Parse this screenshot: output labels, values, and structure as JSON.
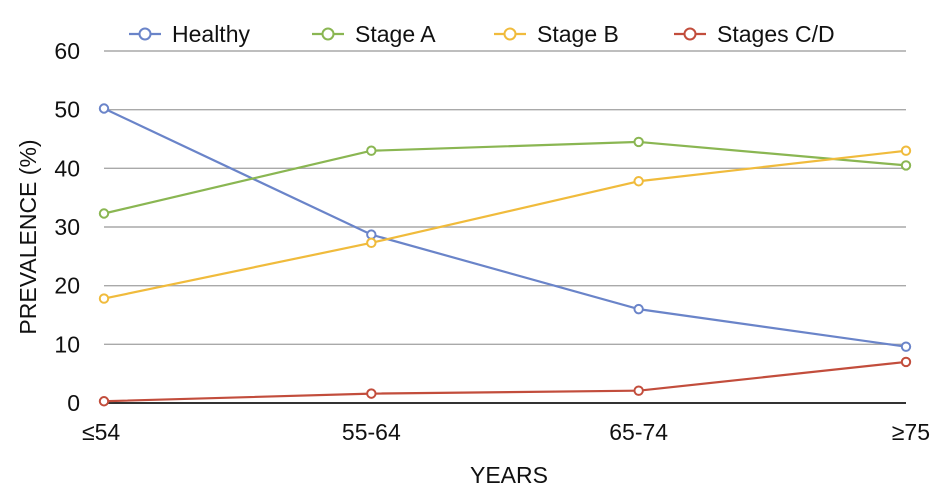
{
  "chart_data": {
    "type": "line",
    "categories": [
      "≤54",
      "55-64",
      "65-74",
      "≥75"
    ],
    "series": [
      {
        "name": "Healthy",
        "color": "#6a84c9",
        "values": [
          50.2,
          28.7,
          16.0,
          9.6
        ]
      },
      {
        "name": "Stage A",
        "color": "#8ab652",
        "values": [
          32.3,
          43.0,
          44.5,
          40.5
        ]
      },
      {
        "name": "Stage B",
        "color": "#f0bb3c",
        "values": [
          17.8,
          27.3,
          37.8,
          43.0
        ]
      },
      {
        "name": "Stages C/D",
        "color": "#c24d3c",
        "values": [
          0.3,
          1.6,
          2.1,
          7.0
        ]
      }
    ],
    "title": "",
    "xlabel": "YEARS",
    "ylabel": "PREVALENCE (%)",
    "ylim": [
      0,
      60
    ],
    "yticks": [
      0,
      10,
      20,
      30,
      40,
      50,
      60
    ],
    "grid": true,
    "legend_position": "top"
  }
}
